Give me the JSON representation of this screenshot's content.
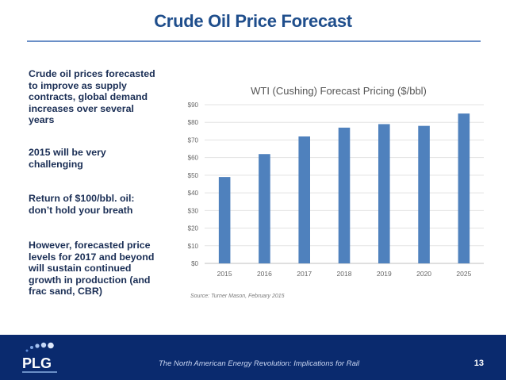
{
  "page_title": "Crude Oil Price Forecast",
  "bullets": [
    "Crude oil prices forecasted to improve as supply contracts, global demand increases over several years",
    "2015 will be very challenging",
    "Return of $100/bbl. oil: don’t hold your breath",
    "However, forecasted price levels for 2017 and beyond will sustain continued growth in production (and frac sand, CBR)"
  ],
  "chart_data": {
    "type": "bar",
    "title": "WTI (Cushing) Forecast Pricing ($/bbl)",
    "categories": [
      "2015",
      "2016",
      "2017",
      "2018",
      "2019",
      "2020",
      "2025"
    ],
    "values": [
      49,
      62,
      72,
      77,
      79,
      78,
      85
    ],
    "ylim": [
      0,
      90
    ],
    "yticks": [
      0,
      10,
      20,
      30,
      40,
      50,
      60,
      70,
      80,
      90
    ],
    "ytick_labels": [
      "$0",
      "$10",
      "$20",
      "$30",
      "$40",
      "$50",
      "$60",
      "$70",
      "$80",
      "$90"
    ],
    "grid": true,
    "bar_color": "#4f81bd",
    "source": "Source: Turner Mason, February 2015"
  },
  "footer": {
    "text": "The North American Energy Revolution: Implications for Rail",
    "page_number": "13",
    "logo_text": "PLG"
  },
  "colors": {
    "title": "#1f4e8c",
    "footer_bg": "#0a2a6e"
  }
}
